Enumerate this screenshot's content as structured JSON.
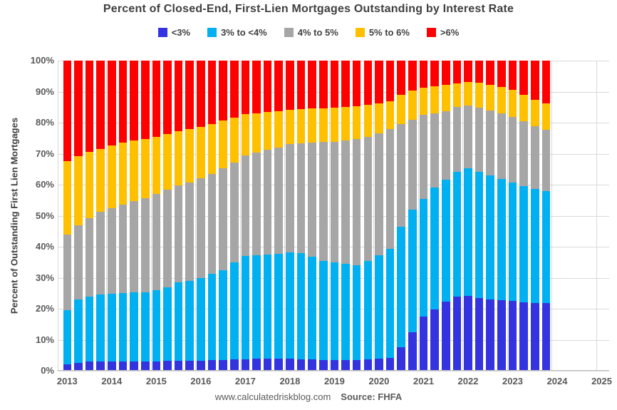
{
  "title": "Percent of Closed-End, First-Lien Mortgages Outstanding by Interest Rate",
  "legend": {
    "items": [
      {
        "label": "<3%",
        "color": "#3333e0"
      },
      {
        "label": "3% to <4%",
        "color": "#00b0f0"
      },
      {
        "label": "4% to 5%",
        "color": "#a6a6a6"
      },
      {
        "label": "5% to 6%",
        "color": "#ffc000"
      },
      {
        "label": ">6%",
        "color": "#ff0000"
      }
    ]
  },
  "y_axis": {
    "title": "Percent of Outstanding First Lien Mortgages",
    "ticks": [
      "100%",
      "90%",
      "80%",
      "70%",
      "60%",
      "50%",
      "40%",
      "30%",
      "20%",
      "10%",
      "0%"
    ]
  },
  "x_axis": {
    "years": [
      "2013",
      "2014",
      "2015",
      "2016",
      "2017",
      "2018",
      "2019",
      "2020",
      "2021",
      "2022",
      "2023",
      "2024",
      "2025"
    ]
  },
  "footer": {
    "site": "www.calculatedriskblog.com",
    "source": "Source: FHFA"
  },
  "colors": {
    "grid": "#d9d9d9",
    "axis": "#bfbfbf",
    "title_text": "#404040",
    "tick_text": "#595959"
  },
  "chart_data": {
    "type": "bar",
    "stacked": true,
    "title": "Percent of Closed-End, First-Lien Mortgages Outstanding by Interest Rate",
    "ylabel": "Percent of Outstanding First Lien Mortgages",
    "ylim": [
      0,
      100
    ],
    "grid": true,
    "legend_position": "top",
    "categories": [
      "2013 Q1",
      "2013 Q2",
      "2013 Q3",
      "2013 Q4",
      "2014 Q1",
      "2014 Q2",
      "2014 Q3",
      "2014 Q4",
      "2015 Q1",
      "2015 Q2",
      "2015 Q3",
      "2015 Q4",
      "2016 Q1",
      "2016 Q2",
      "2016 Q3",
      "2016 Q4",
      "2017 Q1",
      "2017 Q2",
      "2017 Q3",
      "2017 Q4",
      "2018 Q1",
      "2018 Q2",
      "2018 Q3",
      "2018 Q4",
      "2019 Q1",
      "2019 Q2",
      "2019 Q3",
      "2019 Q4",
      "2020 Q1",
      "2020 Q2",
      "2020 Q3",
      "2020 Q4",
      "2021 Q1",
      "2021 Q2",
      "2021 Q3",
      "2021 Q4",
      "2022 Q1",
      "2022 Q2",
      "2022 Q3",
      "2022 Q4",
      "2023 Q1",
      "2023 Q2",
      "2023 Q3",
      "2023 Q4"
    ],
    "series": [
      {
        "name": "<3%",
        "color": "#3333e0",
        "values": [
          2.0,
          2.5,
          3.0,
          3.0,
          3.0,
          3.0,
          3.0,
          3.0,
          3.0,
          3.2,
          3.2,
          3.3,
          3.3,
          3.4,
          3.5,
          3.6,
          3.7,
          3.8,
          3.8,
          3.8,
          3.8,
          3.7,
          3.6,
          3.5,
          3.5,
          3.5,
          3.5,
          3.6,
          4.0,
          4.2,
          7.7,
          12.4,
          17.5,
          19.7,
          22.2,
          24.0,
          24.2,
          23.4,
          23.1,
          22.7,
          22.5,
          22.0,
          21.8,
          21.9
        ]
      },
      {
        "name": "3% to <4%",
        "color": "#00b0f0",
        "values": [
          17.5,
          20.5,
          21.0,
          21.5,
          21.8,
          22.0,
          22.2,
          22.4,
          23.0,
          23.8,
          25.3,
          25.7,
          26.7,
          27.9,
          29.0,
          31.4,
          33.3,
          33.5,
          33.6,
          33.8,
          34.4,
          34.3,
          33.2,
          31.8,
          31.4,
          30.9,
          30.6,
          31.8,
          33.3,
          35.0,
          38.8,
          39.6,
          38.0,
          39.3,
          39.5,
          40.2,
          41.0,
          40.8,
          39.9,
          39.1,
          38.2,
          37.5,
          36.8,
          36.1
        ]
      },
      {
        "name": "4% to 5%",
        "color": "#a6a6a6",
        "values": [
          24.5,
          24.0,
          25.2,
          26.7,
          27.7,
          28.6,
          29.5,
          30.3,
          31.0,
          31.3,
          31.3,
          31.8,
          32.0,
          32.2,
          32.8,
          32.2,
          32.5,
          33.0,
          33.8,
          34.4,
          34.8,
          35.4,
          36.7,
          38.4,
          39.0,
          39.8,
          40.7,
          40.1,
          39.3,
          38.8,
          33.0,
          29.0,
          27.0,
          23.9,
          22.0,
          20.8,
          20.4,
          20.6,
          20.9,
          21.1,
          21.1,
          21.0,
          20.3,
          19.6
        ]
      },
      {
        "name": "5% to 6%",
        "color": "#ffc000",
        "values": [
          23.5,
          22.2,
          21.4,
          20.4,
          20.2,
          19.9,
          19.5,
          19.1,
          18.3,
          18.0,
          17.5,
          17.2,
          16.6,
          16.1,
          15.4,
          14.5,
          13.2,
          12.8,
          12.3,
          11.8,
          11.2,
          11.0,
          11.0,
          11.0,
          11.0,
          10.9,
          10.6,
          10.3,
          9.7,
          9.0,
          9.5,
          9.3,
          8.7,
          8.8,
          8.4,
          7.7,
          7.4,
          8.0,
          8.3,
          8.6,
          8.7,
          8.5,
          8.5,
          8.7
        ]
      },
      {
        "name": ">6%",
        "color": "#ff0000",
        "values": [
          32.5,
          30.8,
          29.4,
          28.4,
          27.3,
          26.5,
          25.8,
          25.2,
          24.7,
          23.7,
          22.7,
          22.0,
          21.4,
          20.4,
          19.3,
          18.3,
          17.3,
          16.9,
          16.5,
          16.2,
          15.8,
          15.6,
          15.5,
          15.3,
          15.1,
          14.9,
          14.6,
          14.2,
          13.7,
          13.0,
          11.0,
          9.7,
          8.8,
          8.3,
          7.9,
          7.3,
          7.0,
          7.2,
          7.8,
          8.5,
          9.5,
          11.0,
          12.6,
          13.7
        ]
      }
    ]
  }
}
